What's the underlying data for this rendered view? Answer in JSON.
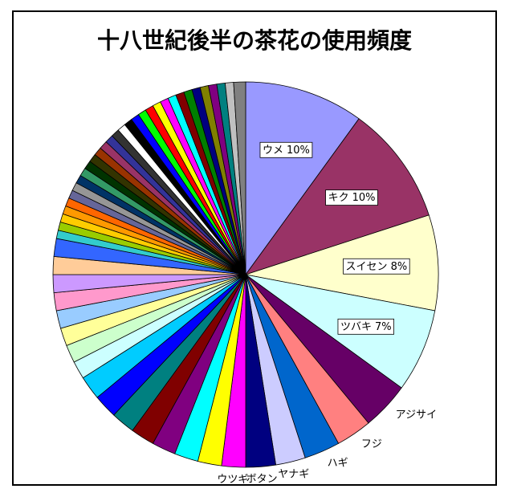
{
  "chart_data": {
    "type": "pie",
    "title": "十八世紀後半の茶花の使用頻度",
    "categories": [
      "ウメ",
      "キク",
      "スイセン",
      "ツバキ",
      "アジサイ",
      "フジ",
      "ハギ",
      "ヤナギ",
      "ボタン",
      "ウツギ",
      null,
      null,
      null,
      null,
      null,
      null,
      null,
      null,
      null,
      null,
      null,
      null,
      null,
      null,
      null,
      null,
      null,
      null,
      null,
      null,
      null,
      null,
      null,
      null,
      null,
      null,
      null,
      null,
      null,
      null,
      null,
      null,
      null,
      null,
      null,
      null,
      null,
      null,
      null,
      null,
      null,
      null,
      null,
      null,
      null,
      null
    ],
    "values": [
      10,
      10,
      8,
      7,
      4,
      3,
      3,
      2.5,
      2.5,
      2,
      2,
      2,
      2,
      2,
      2,
      2,
      2,
      1.5,
      1.5,
      1.5,
      1.5,
      1.5,
      1.5,
      1.5,
      1.5,
      0.7,
      0.7,
      0.7,
      0.7,
      0.7,
      0.7,
      0.7,
      0.7,
      0.7,
      0.7,
      0.7,
      0.7,
      0.7,
      0.7,
      0.7,
      0.7,
      0.7,
      0.7,
      0.7,
      0.7,
      0.7,
      0.7,
      0.7,
      0.7,
      0.7,
      0.7,
      0.7,
      0.7,
      0.7,
      0.7,
      1
    ],
    "value_labels": [
      "10%",
      "10%",
      "8%",
      "7%",
      null,
      null,
      null,
      null,
      null,
      null,
      null,
      null,
      null,
      null,
      null,
      null,
      null,
      null,
      null,
      null,
      null,
      null,
      null,
      null,
      null,
      null,
      null,
      null,
      null,
      null,
      null,
      null,
      null,
      null,
      null,
      null,
      null,
      null,
      null,
      null,
      null,
      null,
      null,
      null,
      null,
      null,
      null,
      null,
      null,
      null,
      null,
      null,
      null,
      null,
      null,
      null
    ],
    "colors": [
      "#9999ff",
      "#993366",
      "#ffffcc",
      "#ccffff",
      "#660066",
      "#ff8080",
      "#0066cc",
      "#ccccff",
      "#000080",
      "#ff00ff",
      "#ffff00",
      "#00ffff",
      "#800080",
      "#800000",
      "#008080",
      "#0000ff",
      "#00ccff",
      "#ccffff",
      "#ccffcc",
      "#ffff99",
      "#99ccff",
      "#ff99cc",
      "#cc99ff",
      "#ffcc99",
      "#3366ff",
      "#33cccc",
      "#99cc00",
      "#ffcc00",
      "#ff9900",
      "#ff6600",
      "#666699",
      "#969696",
      "#003366",
      "#339966",
      "#003300",
      "#333300",
      "#993300",
      "#993366",
      "#333399",
      "#333333",
      "#ffffff",
      "#000000",
      "#0000ff",
      "#00ff00",
      "#ff0000",
      "#ffff00",
      "#ff00ff",
      "#00ffff",
      "#800000",
      "#008000",
      "#000080",
      "#808000",
      "#800080",
      "#008080",
      "#c0c0c0",
      "#808080"
    ]
  }
}
